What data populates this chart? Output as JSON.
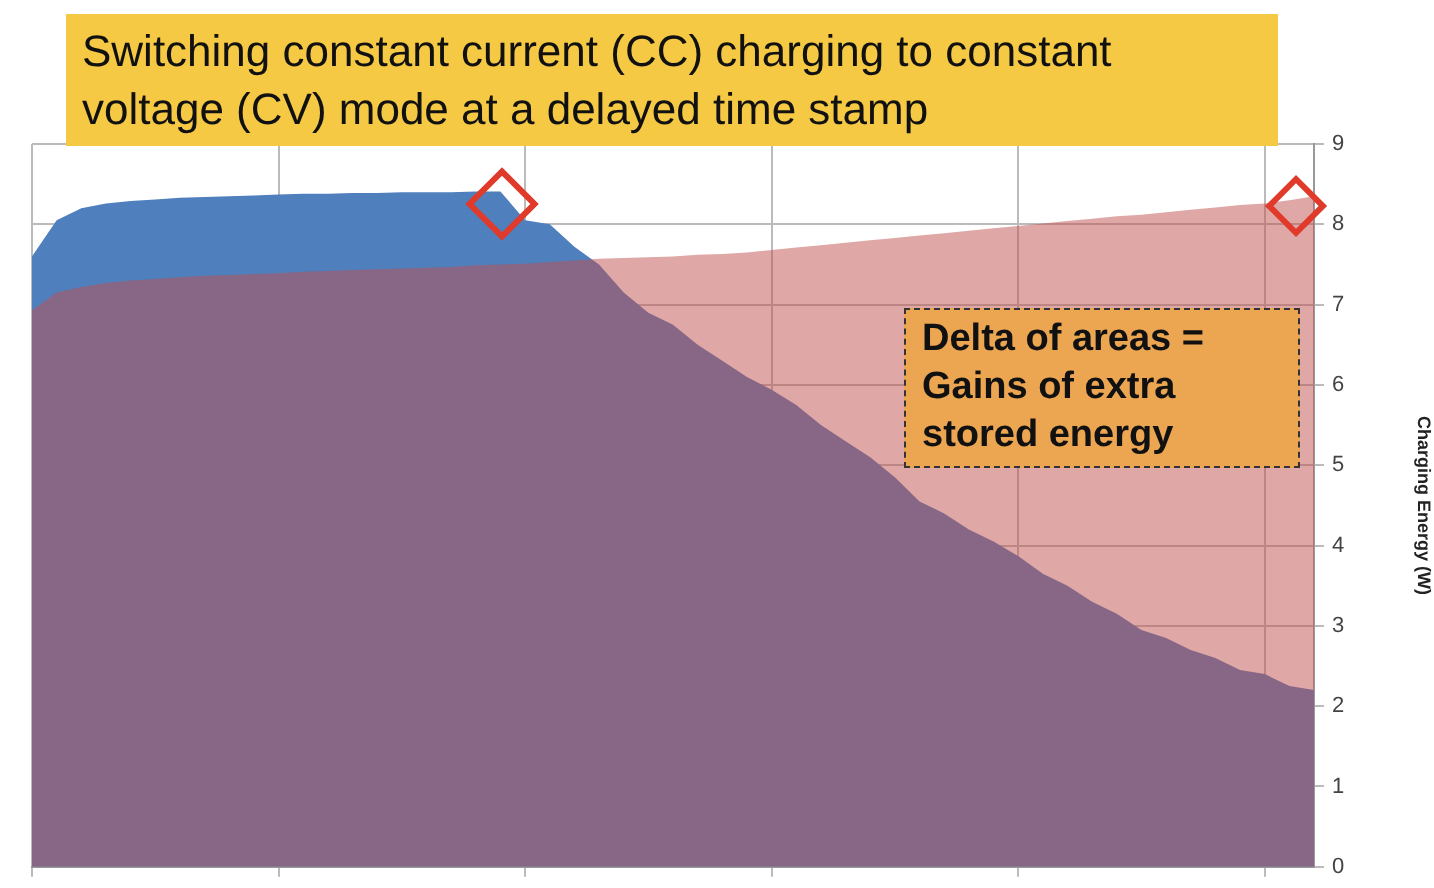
{
  "chart_data": {
    "type": "area",
    "title": "Switching constant current (CC) charging to constant voltage (CV) mode at a delayed time stamp",
    "ylabel": "Charging Energy (W)",
    "categories": [
      null,
      null,
      null,
      null,
      null,
      null,
      null,
      null,
      null,
      null,
      null,
      null,
      null,
      null,
      null,
      null,
      null,
      null,
      null,
      null,
      null,
      null,
      null,
      null,
      null,
      null,
      null,
      null,
      null,
      null,
      null,
      null,
      null,
      null,
      null,
      null,
      null,
      null,
      null,
      null,
      null,
      null,
      null,
      null,
      null,
      null,
      null,
      null,
      null,
      null,
      null,
      null,
      null
    ],
    "series": [
      {
        "color": "#4f7fbd",
        "values": [
          7.6,
          8.05,
          8.2,
          8.26,
          8.29,
          8.31,
          8.33,
          8.34,
          8.35,
          8.36,
          8.37,
          8.38,
          8.38,
          8.39,
          8.39,
          8.4,
          8.4,
          8.4,
          8.41,
          8.41,
          8.05,
          8.0,
          7.72,
          7.5,
          7.15,
          6.9,
          6.75,
          6.5,
          6.3,
          6.1,
          5.94,
          5.75,
          5.5,
          5.3,
          5.1,
          4.85,
          4.55,
          4.4,
          4.2,
          4.05,
          3.87,
          3.65,
          3.5,
          3.3,
          3.15,
          2.95,
          2.85,
          2.7,
          2.6,
          2.45,
          2.4,
          2.25,
          2.2
        ]
      },
      {
        "color": "#c0504d",
        "values": [
          6.93,
          7.15,
          7.22,
          7.27,
          7.3,
          7.32,
          7.34,
          7.36,
          7.37,
          7.38,
          7.39,
          7.41,
          7.42,
          7.43,
          7.44,
          7.45,
          7.46,
          7.47,
          7.49,
          7.5,
          7.51,
          7.53,
          7.55,
          7.57,
          7.58,
          7.59,
          7.6,
          7.62,
          7.63,
          7.65,
          7.68,
          7.71,
          7.74,
          7.77,
          7.8,
          7.83,
          7.86,
          7.89,
          7.92,
          7.95,
          7.98,
          8.01,
          8.04,
          8.07,
          8.1,
          8.12,
          8.15,
          8.18,
          8.21,
          8.24,
          8.26,
          8.3,
          8.35
        ]
      }
    ],
    "ylim": [
      0,
      9
    ],
    "yticks": [
      0,
      1,
      2,
      3,
      4,
      5,
      6,
      7,
      8,
      9
    ],
    "grid": true,
    "tick_labels": "y",
    "legend": false,
    "annotations": [
      "Delta of areas = Gains of extra stored energy"
    ]
  }
}
